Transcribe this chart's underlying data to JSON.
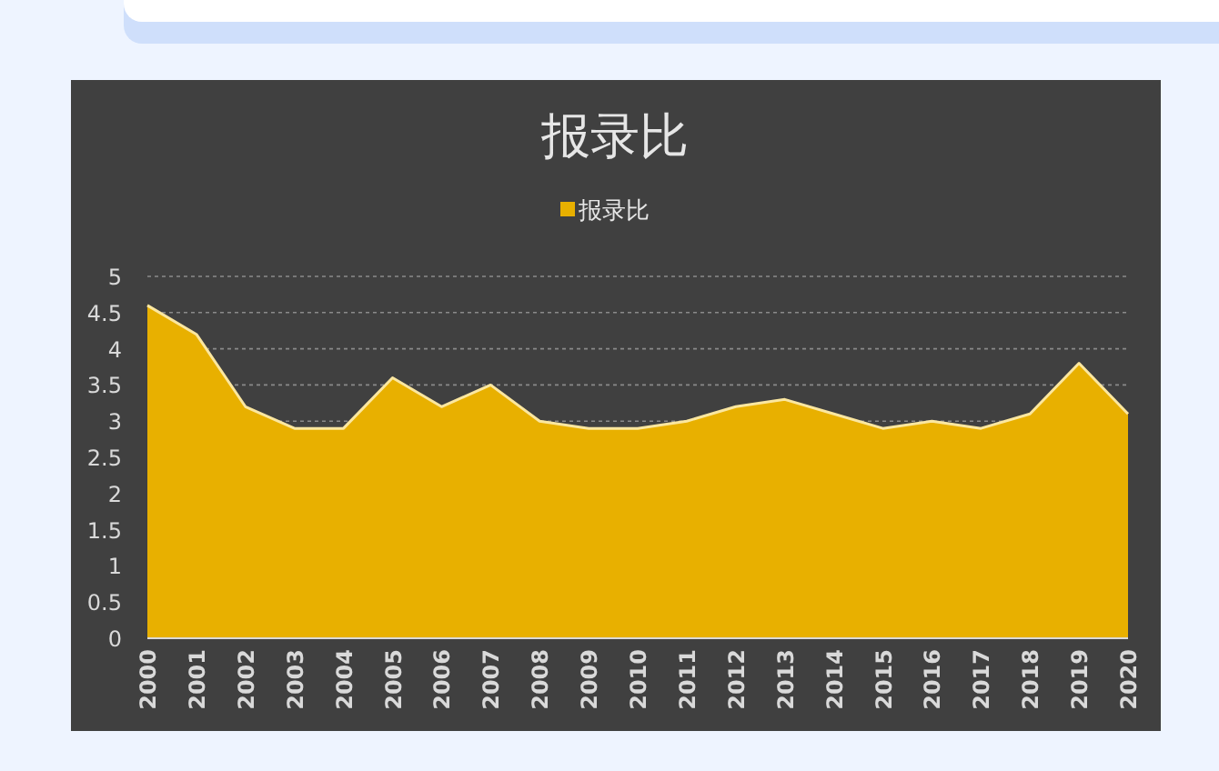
{
  "chart_data": {
    "type": "area",
    "title": "报录比",
    "categories": [
      "2000",
      "2001",
      "2002",
      "2003",
      "2004",
      "2005",
      "2006",
      "2007",
      "2008",
      "2009",
      "2010",
      "2011",
      "2012",
      "2013",
      "2014",
      "2015",
      "2016",
      "2017",
      "2018",
      "2019",
      "2020"
    ],
    "series": [
      {
        "name": "报录比",
        "color": "#e8b000",
        "values": [
          4.6,
          4.2,
          3.2,
          2.9,
          2.9,
          3.6,
          3.2,
          3.5,
          3.0,
          2.9,
          2.9,
          3.0,
          3.2,
          3.3,
          3.1,
          2.9,
          3.0,
          2.9,
          3.1,
          3.8,
          3.1
        ]
      }
    ],
    "ylim": [
      0,
      5
    ],
    "yticks": [
      0,
      0.5,
      1,
      1.5,
      2,
      2.5,
      3,
      3.5,
      4,
      4.5,
      5
    ],
    "grid": "y",
    "legend": "top"
  }
}
